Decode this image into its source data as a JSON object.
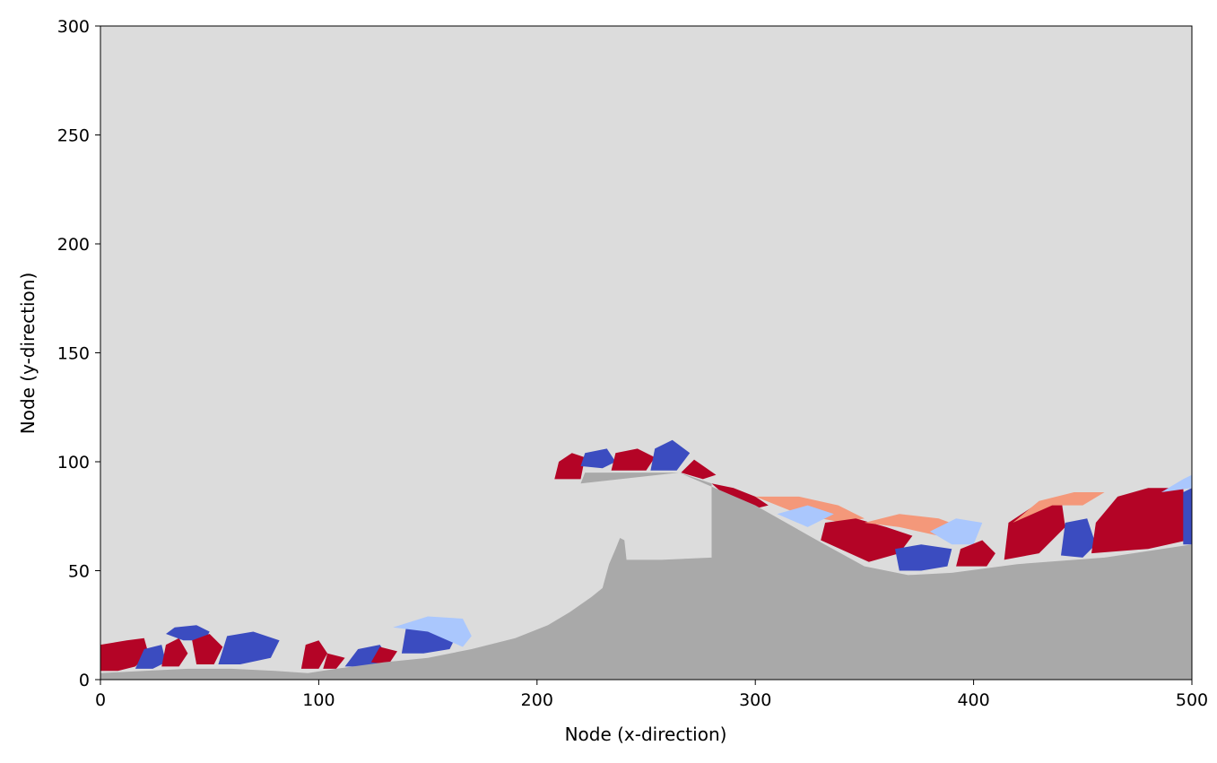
{
  "chart_data": {
    "type": "heatmap",
    "title": "",
    "xlabel": "Node (x-direction)",
    "ylabel": "Node (y-direction)",
    "xlim": [
      0,
      500
    ],
    "ylim": [
      0,
      300
    ],
    "xticks": [
      0,
      100,
      200,
      300,
      400,
      500
    ],
    "yticks": [
      0,
      50,
      100,
      150,
      200,
      250,
      300
    ],
    "grid": false,
    "legend": "none",
    "colors": {
      "background": "#dcdcdc",
      "solid": "#a9a9a9",
      "positive": "#b40426",
      "negative": "#3b4cc0",
      "light_positive": "#f4987a",
      "light_negative": "#aac7fd"
    },
    "solid_boundary": [
      [
        0,
        3
      ],
      [
        20,
        4
      ],
      [
        40,
        5
      ],
      [
        60,
        5
      ],
      [
        80,
        4
      ],
      [
        95,
        3
      ],
      [
        108,
        5
      ],
      [
        130,
        8
      ],
      [
        150,
        10
      ],
      [
        170,
        14
      ],
      [
        190,
        19
      ],
      [
        205,
        25
      ],
      [
        215,
        31
      ],
      [
        225,
        38
      ],
      [
        230,
        42
      ],
      [
        233,
        53
      ],
      [
        236,
        60
      ],
      [
        238,
        65
      ],
      [
        240,
        64
      ],
      [
        241,
        55
      ],
      [
        257,
        55
      ],
      [
        280,
        56
      ],
      [
        280,
        90
      ],
      [
        265,
        95
      ],
      [
        222,
        95
      ],
      [
        220,
        90
      ],
      [
        265,
        95
      ],
      [
        300,
        80
      ],
      [
        330,
        63
      ],
      [
        350,
        52
      ],
      [
        370,
        48
      ],
      [
        390,
        49
      ],
      [
        420,
        53
      ],
      [
        460,
        56
      ],
      [
        500,
        62
      ]
    ],
    "fluid_regions": [
      {
        "sign": "positive",
        "polygon": [
          [
            0,
            4
          ],
          [
            0,
            16
          ],
          [
            12,
            18
          ],
          [
            20,
            19
          ],
          [
            22,
            12
          ],
          [
            16,
            6
          ],
          [
            8,
            4
          ]
        ]
      },
      {
        "sign": "negative",
        "polygon": [
          [
            16,
            5
          ],
          [
            20,
            14
          ],
          [
            28,
            16
          ],
          [
            30,
            8
          ],
          [
            24,
            5
          ]
        ]
      },
      {
        "sign": "positive",
        "polygon": [
          [
            28,
            6
          ],
          [
            30,
            16
          ],
          [
            36,
            19
          ],
          [
            40,
            12
          ],
          [
            36,
            6
          ]
        ]
      },
      {
        "sign": "negative",
        "polygon": [
          [
            34,
            24
          ],
          [
            44,
            25
          ],
          [
            50,
            22
          ],
          [
            48,
            18
          ],
          [
            38,
            18
          ],
          [
            30,
            21
          ]
        ]
      },
      {
        "sign": "positive",
        "polygon": [
          [
            44,
            7
          ],
          [
            42,
            18
          ],
          [
            50,
            21
          ],
          [
            56,
            15
          ],
          [
            52,
            7
          ]
        ]
      },
      {
        "sign": "negative",
        "polygon": [
          [
            54,
            7
          ],
          [
            58,
            20
          ],
          [
            70,
            22
          ],
          [
            82,
            18
          ],
          [
            78,
            10
          ],
          [
            64,
            7
          ]
        ]
      },
      {
        "sign": "positive",
        "polygon": [
          [
            92,
            5
          ],
          [
            94,
            16
          ],
          [
            100,
            18
          ],
          [
            104,
            12
          ],
          [
            100,
            5
          ]
        ]
      },
      {
        "sign": "positive",
        "polygon": [
          [
            102,
            5
          ],
          [
            104,
            12
          ],
          [
            112,
            10
          ],
          [
            108,
            5
          ]
        ]
      },
      {
        "sign": "negative",
        "polygon": [
          [
            112,
            6
          ],
          [
            118,
            14
          ],
          [
            128,
            16
          ],
          [
            132,
            10
          ],
          [
            124,
            6
          ]
        ]
      },
      {
        "sign": "positive",
        "polygon": [
          [
            124,
            8
          ],
          [
            128,
            15
          ],
          [
            136,
            13
          ],
          [
            132,
            7
          ]
        ]
      },
      {
        "sign": "negative",
        "polygon": [
          [
            138,
            12
          ],
          [
            140,
            24
          ],
          [
            152,
            27
          ],
          [
            164,
            22
          ],
          [
            160,
            14
          ],
          [
            148,
            12
          ]
        ]
      },
      {
        "sign": "light_negative",
        "polygon": [
          [
            134,
            24
          ],
          [
            150,
            29
          ],
          [
            166,
            28
          ],
          [
            170,
            20
          ],
          [
            166,
            15
          ],
          [
            150,
            22
          ]
        ]
      },
      {
        "sign": "positive",
        "polygon": [
          [
            208,
            92
          ],
          [
            210,
            100
          ],
          [
            216,
            104
          ],
          [
            222,
            102
          ],
          [
            220,
            92
          ]
        ]
      },
      {
        "sign": "negative",
        "polygon": [
          [
            220,
            98
          ],
          [
            222,
            104
          ],
          [
            232,
            106
          ],
          [
            236,
            100
          ],
          [
            230,
            97
          ]
        ]
      },
      {
        "sign": "positive",
        "polygon": [
          [
            234,
            96
          ],
          [
            236,
            104
          ],
          [
            246,
            106
          ],
          [
            254,
            102
          ],
          [
            250,
            96
          ]
        ]
      },
      {
        "sign": "negative",
        "polygon": [
          [
            252,
            96
          ],
          [
            254,
            106
          ],
          [
            262,
            110
          ],
          [
            270,
            104
          ],
          [
            264,
            96
          ]
        ]
      },
      {
        "sign": "positive",
        "polygon": [
          [
            266,
            95
          ],
          [
            272,
            101
          ],
          [
            282,
            94
          ],
          [
            276,
            92
          ]
        ]
      },
      {
        "sign": "positive",
        "polygon": [
          [
            280,
            90
          ],
          [
            290,
            88
          ],
          [
            300,
            84
          ],
          [
            306,
            80
          ],
          [
            298,
            78
          ],
          [
            288,
            83
          ]
        ]
      },
      {
        "sign": "light_positive",
        "polygon": [
          [
            300,
            84
          ],
          [
            320,
            84
          ],
          [
            338,
            80
          ],
          [
            350,
            74
          ],
          [
            340,
            72
          ],
          [
            320,
            76
          ]
        ]
      },
      {
        "sign": "light_negative",
        "polygon": [
          [
            310,
            76
          ],
          [
            324,
            80
          ],
          [
            336,
            76
          ],
          [
            324,
            70
          ]
        ]
      },
      {
        "sign": "positive",
        "polygon": [
          [
            330,
            64
          ],
          [
            332,
            72
          ],
          [
            346,
            74
          ],
          [
            360,
            70
          ],
          [
            372,
            66
          ],
          [
            366,
            58
          ],
          [
            352,
            54
          ]
        ]
      },
      {
        "sign": "negative",
        "polygon": [
          [
            366,
            50
          ],
          [
            364,
            60
          ],
          [
            376,
            62
          ],
          [
            390,
            60
          ],
          [
            388,
            52
          ],
          [
            376,
            50
          ]
        ]
      },
      {
        "sign": "light_positive",
        "polygon": [
          [
            350,
            72
          ],
          [
            366,
            76
          ],
          [
            384,
            74
          ],
          [
            400,
            68
          ],
          [
            384,
            66
          ],
          [
            366,
            70
          ]
        ]
      },
      {
        "sign": "light_negative",
        "polygon": [
          [
            380,
            68
          ],
          [
            392,
            74
          ],
          [
            404,
            72
          ],
          [
            400,
            62
          ],
          [
            390,
            62
          ]
        ]
      },
      {
        "sign": "positive",
        "polygon": [
          [
            392,
            52
          ],
          [
            394,
            60
          ],
          [
            404,
            64
          ],
          [
            410,
            58
          ],
          [
            406,
            52
          ]
        ]
      },
      {
        "sign": "positive",
        "polygon": [
          [
            414,
            55
          ],
          [
            416,
            72
          ],
          [
            428,
            80
          ],
          [
            440,
            84
          ],
          [
            442,
            70
          ],
          [
            430,
            58
          ]
        ]
      },
      {
        "sign": "light_positive",
        "polygon": [
          [
            418,
            72
          ],
          [
            430,
            82
          ],
          [
            446,
            86
          ],
          [
            460,
            86
          ],
          [
            450,
            80
          ],
          [
            436,
            80
          ]
        ]
      },
      {
        "sign": "negative",
        "polygon": [
          [
            440,
            57
          ],
          [
            442,
            72
          ],
          [
            452,
            74
          ],
          [
            456,
            62
          ],
          [
            450,
            56
          ]
        ]
      },
      {
        "sign": "positive",
        "polygon": [
          [
            454,
            58
          ],
          [
            456,
            72
          ],
          [
            466,
            84
          ],
          [
            480,
            88
          ],
          [
            496,
            88
          ],
          [
            498,
            64
          ],
          [
            480,
            60
          ]
        ]
      },
      {
        "sign": "negative",
        "polygon": [
          [
            496,
            62
          ],
          [
            496,
            86
          ],
          [
            500,
            88
          ],
          [
            500,
            62
          ]
        ]
      },
      {
        "sign": "light_negative",
        "polygon": [
          [
            486,
            86
          ],
          [
            496,
            92
          ],
          [
            500,
            94
          ],
          [
            500,
            88
          ]
        ]
      }
    ]
  }
}
